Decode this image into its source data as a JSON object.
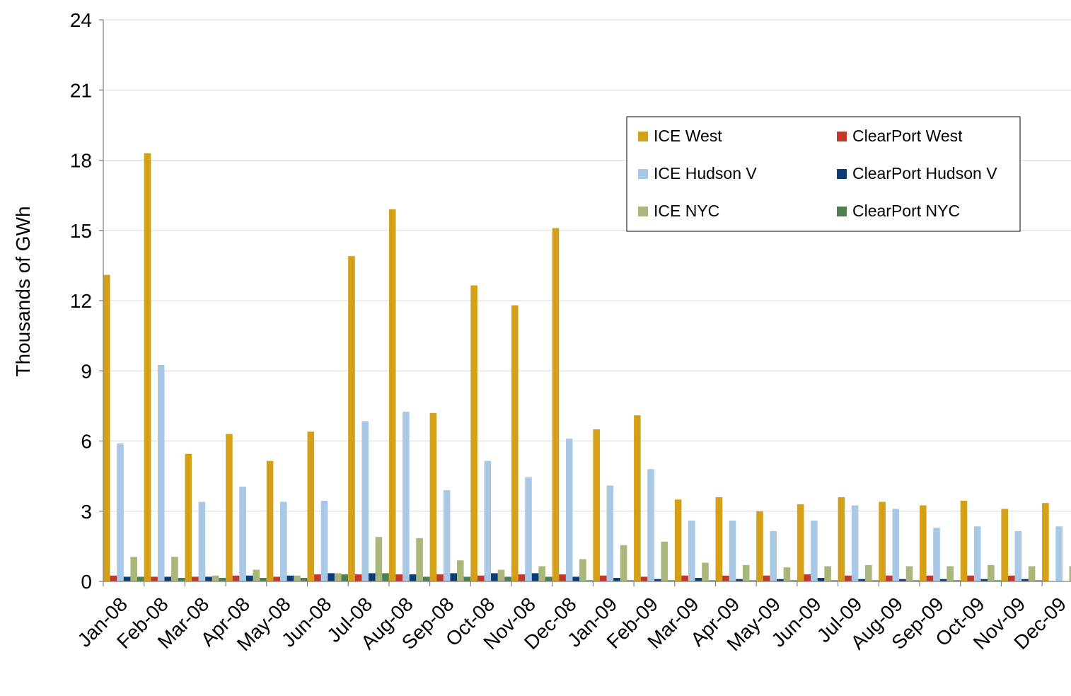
{
  "chart_data": {
    "type": "bar",
    "title": "",
    "xlabel": "",
    "ylabel": "Thousands of GWh",
    "ylim": [
      0,
      24
    ],
    "yticks": [
      0,
      3,
      6,
      9,
      12,
      15,
      18,
      21,
      24
    ],
    "grid": true,
    "legend_position": "top-right",
    "categories": [
      "Jan-08",
      "Feb-08",
      "Mar-08",
      "Apr-08",
      "May-08",
      "Jun-08",
      "Jul-08",
      "Aug-08",
      "Sep-08",
      "Oct-08",
      "Nov-08",
      "Dec-08",
      "Jan-09",
      "Feb-09",
      "Mar-09",
      "Apr-09",
      "May-09",
      "Jun-09",
      "Jul-09",
      "Aug-09",
      "Sep-09",
      "Oct-09",
      "Nov-09",
      "Dec-09"
    ],
    "series": [
      {
        "name": "ICE West",
        "color": "#D4A017",
        "values": [
          13.1,
          18.3,
          5.45,
          6.3,
          5.15,
          6.4,
          13.9,
          15.9,
          7.2,
          12.65,
          11.8,
          15.1,
          6.5,
          7.1,
          3.5,
          3.6,
          3.0,
          3.3,
          3.6,
          3.4,
          3.25,
          3.45,
          3.1,
          3.35
        ]
      },
      {
        "name": "ICE Hudson V",
        "color": "#A8C8E6",
        "values": [
          5.9,
          9.25,
          3.4,
          4.05,
          3.4,
          3.45,
          6.85,
          7.25,
          3.9,
          5.15,
          4.45,
          6.1,
          4.1,
          4.8,
          2.6,
          2.6,
          2.15,
          2.6,
          3.25,
          3.1,
          2.3,
          2.35,
          2.15,
          2.35
        ]
      },
      {
        "name": "ICE NYC",
        "color": "#A9B77A",
        "values": [
          1.05,
          1.05,
          0.25,
          0.5,
          0.25,
          0.35,
          1.9,
          1.85,
          0.9,
          0.5,
          0.65,
          0.95,
          1.55,
          1.7,
          0.8,
          0.7,
          0.6,
          0.65,
          0.7,
          0.65,
          0.65,
          0.7,
          0.65,
          0.65
        ]
      },
      {
        "name": "ClearPort West",
        "color": "#C0392B",
        "values": [
          0.25,
          0.2,
          0.2,
          0.25,
          0.2,
          0.3,
          0.3,
          0.3,
          0.3,
          0.25,
          0.3,
          0.3,
          0.25,
          0.2,
          0.25,
          0.25,
          0.25,
          0.3,
          0.25,
          0.25,
          0.25,
          0.25,
          0.25,
          0.0
        ]
      },
      {
        "name": "ClearPort Hudson V",
        "color": "#0B3D75",
        "values": [
          0.2,
          0.2,
          0.2,
          0.25,
          0.25,
          0.35,
          0.35,
          0.3,
          0.35,
          0.35,
          0.35,
          0.2,
          0.15,
          0.1,
          0.15,
          0.1,
          0.1,
          0.15,
          0.1,
          0.1,
          0.1,
          0.1,
          0.1,
          0.0
        ]
      },
      {
        "name": "ClearPort NYC",
        "color": "#4E7F52",
        "values": [
          0.2,
          0.15,
          0.15,
          0.15,
          0.15,
          0.3,
          0.35,
          0.2,
          0.2,
          0.2,
          0.2,
          0.05,
          0.05,
          0.05,
          0.05,
          0.05,
          0.05,
          0.05,
          0.05,
          0.05,
          0.05,
          0.05,
          0.05,
          0.0
        ]
      }
    ]
  },
  "legend": {
    "items": [
      {
        "label": "ICE West",
        "color": "#D4A017"
      },
      {
        "label": "ClearPort West",
        "color": "#C0392B"
      },
      {
        "label": "ICE Hudson V",
        "color": "#A8C8E6"
      },
      {
        "label": "ClearPort Hudson V",
        "color": "#0B3D75"
      },
      {
        "label": "ICE NYC",
        "color": "#A9B77A"
      },
      {
        "label": "ClearPort NYC",
        "color": "#4E7F52"
      }
    ]
  }
}
